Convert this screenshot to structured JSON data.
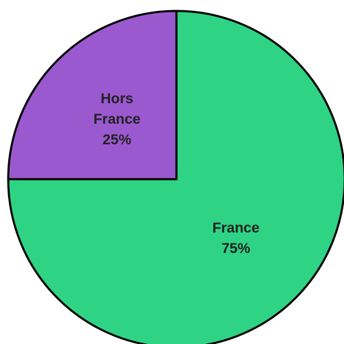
{
  "chart_data": {
    "type": "pie",
    "categories": [
      "France",
      "Hors France"
    ],
    "values": [
      75,
      25
    ],
    "value_labels": [
      "75%",
      "25%"
    ],
    "colors": [
      "#2ed384",
      "#9b59d0"
    ],
    "start_angle": 90,
    "direction": "clockwise"
  }
}
